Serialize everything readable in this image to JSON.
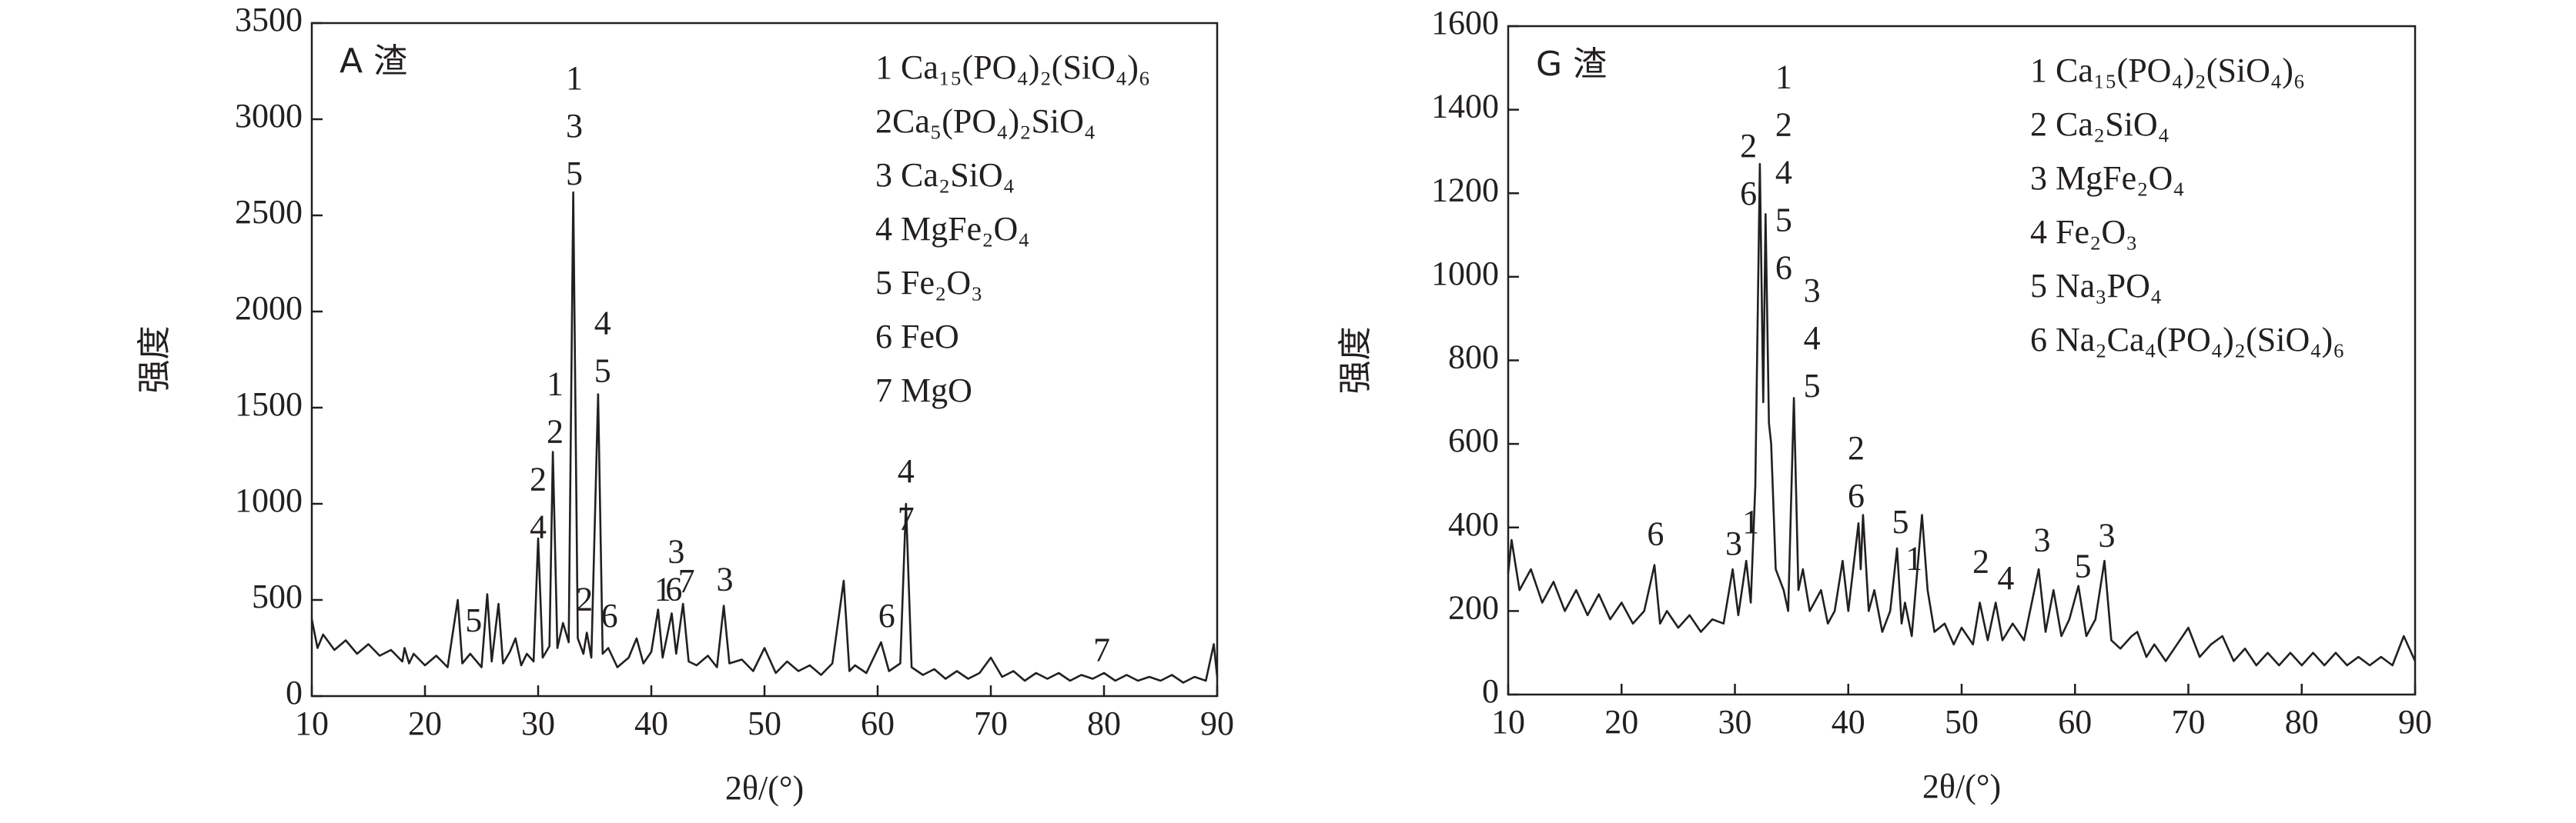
{
  "chart_data": [
    {
      "type": "line",
      "title": "A 渣",
      "xlabel": "2θ/(°)",
      "ylabel": "强度",
      "color": "#231f20",
      "xlim": [
        10,
        90
      ],
      "xticks": [
        10,
        20,
        30,
        40,
        50,
        60,
        70,
        80,
        90
      ],
      "ylim": [
        0,
        3500
      ],
      "yticks": [
        0,
        500,
        1000,
        1500,
        2000,
        2500,
        3000,
        3500
      ],
      "legend": [
        "1 Ca₁₅(PO₄)₂(SiO₄)₆",
        "2Ca₅(PO₄)₂SiO₄",
        "3 Ca₂SiO₄",
        "4 MgFe₂O₄",
        "5 Fe₂O₃",
        "6 FeO",
        "7 MgO"
      ],
      "x": [
        10,
        10.5,
        11,
        12,
        13,
        14,
        15,
        16,
        17,
        18,
        18.2,
        18.6,
        19,
        20,
        21,
        22,
        22.9,
        23.3,
        24,
        25,
        25.5,
        25.9,
        26.5,
        26.9,
        27.5,
        28,
        28.5,
        29,
        29.6,
        30,
        30.4,
        31,
        31.3,
        31.7,
        32.2,
        32.7,
        33.1,
        33.5,
        34,
        34.3,
        34.7,
        35.3,
        35.7,
        36.2,
        37,
        38,
        38.7,
        39.3,
        40,
        40.6,
        41,
        41.8,
        42.2,
        42.8,
        43.3,
        44,
        45,
        45.8,
        46.4,
        46.9,
        48,
        49,
        50,
        51,
        52,
        53,
        54,
        55,
        56,
        57,
        57.5,
        58,
        59,
        60.3,
        61,
        62,
        62.5,
        63,
        64,
        65,
        66,
        67,
        68,
        69,
        70,
        71,
        72,
        73,
        74,
        75,
        76,
        77,
        78,
        79,
        80,
        81,
        82,
        83,
        84,
        85,
        86,
        87,
        88,
        89,
        89.7,
        90
      ],
      "values": [
        400,
        250,
        320,
        240,
        290,
        220,
        270,
        210,
        240,
        180,
        250,
        170,
        220,
        160,
        210,
        150,
        500,
        170,
        220,
        150,
        530,
        180,
        480,
        170,
        230,
        300,
        160,
        220,
        180,
        820,
        200,
        260,
        1270,
        250,
        380,
        280,
        2620,
        300,
        220,
        330,
        200,
        1570,
        220,
        250,
        150,
        200,
        300,
        170,
        230,
        450,
        200,
        430,
        220,
        480,
        180,
        160,
        210,
        150,
        470,
        170,
        190,
        130,
        250,
        120,
        180,
        130,
        160,
        110,
        170,
        600,
        130,
        160,
        120,
        280,
        130,
        170,
        1000,
        150,
        110,
        140,
        90,
        130,
        90,
        120,
        200,
        100,
        130,
        80,
        120,
        90,
        120,
        80,
        110,
        90,
        120,
        80,
        110,
        80,
        100,
        80,
        110,
        70,
        100,
        80,
        270,
        100
      ],
      "annotations": [
        {
          "x": 33.2,
          "y": 2700,
          "lines": [
            "1",
            "3",
            "5"
          ]
        },
        {
          "x": 35.7,
          "y": 1674,
          "lines": [
            "4",
            "5"
          ]
        },
        {
          "x": 31.5,
          "y": 1358,
          "lines": [
            "1",
            "2"
          ]
        },
        {
          "x": 30.0,
          "y": 862,
          "lines": [
            "2",
            "4"
          ]
        },
        {
          "x": 24.3,
          "y": 376,
          "lines": [
            "5"
          ]
        },
        {
          "x": 34.1,
          "y": 487,
          "lines": [
            "2"
          ]
        },
        {
          "x": 36.3,
          "y": 401,
          "lines": [
            "6"
          ]
        },
        {
          "x": 41.0,
          "y": 538,
          "lines": [
            "1"
          ]
        },
        {
          "x": 42.0,
          "y": 538,
          "lines": [
            "6"
          ]
        },
        {
          "x": 42.2,
          "y": 734,
          "lines": [
            "3"
          ]
        },
        {
          "x": 43.1,
          "y": 580,
          "lines": [
            "7"
          ]
        },
        {
          "x": 46.5,
          "y": 590,
          "lines": [
            "3"
          ]
        },
        {
          "x": 60.8,
          "y": 401,
          "lines": [
            "6"
          ]
        },
        {
          "x": 62.5,
          "y": 905,
          "lines": [
            "4",
            "7"
          ]
        },
        {
          "x": 79.8,
          "y": 222,
          "lines": [
            "7"
          ]
        }
      ]
    },
    {
      "type": "line",
      "title": "G 渣",
      "xlabel": "2θ/(°)",
      "ylabel": "强度",
      "color": "#231f20",
      "xlim": [
        10,
        90
      ],
      "xticks": [
        10,
        20,
        30,
        40,
        50,
        60,
        70,
        80,
        90
      ],
      "ylim": [
        0,
        1600
      ],
      "yticks": [
        0,
        200,
        400,
        600,
        800,
        1000,
        1200,
        1400,
        1600
      ],
      "legend": [
        "1 Ca₁₅(PO₄)₂(SiO₄)₆",
        "2 Ca₂SiO₄",
        "3 MgFe₂O₄",
        "4 Fe₂O₃",
        "5 Na₃PO₄",
        "6 Na₂Ca₄(PO₄)₂(SiO₄)₆"
      ],
      "x": [
        10,
        10.3,
        11,
        12,
        13,
        14,
        15,
        16,
        17,
        18,
        19,
        20,
        21,
        22,
        22.9,
        23.4,
        24,
        25,
        26,
        27,
        28,
        29,
        29.8,
        30.3,
        31,
        31.4,
        31.8,
        32.2,
        32.5,
        32.7,
        33,
        33.2,
        33.6,
        34.3,
        34.7,
        35.2,
        35.6,
        36,
        36.6,
        37.6,
        38.2,
        38.8,
        39.5,
        40,
        40.9,
        41.1,
        41.3,
        41.8,
        42.3,
        43,
        43.7,
        44.3,
        44.7,
        45,
        45.6,
        46.5,
        47,
        47.6,
        48.5,
        49.3,
        50,
        51,
        51.6,
        52.3,
        53,
        53.6,
        54.5,
        55.5,
        56.8,
        57.4,
        58.1,
        58.8,
        59.5,
        60.3,
        61,
        61.8,
        62.6,
        63.2,
        64,
        65,
        65.5,
        66.3,
        67,
        68,
        69,
        70,
        71,
        72,
        73,
        74,
        75,
        76,
        77,
        78,
        79,
        80,
        81,
        82,
        83,
        84,
        85,
        86,
        87,
        88,
        89,
        90
      ],
      "values": [
        290,
        370,
        250,
        300,
        220,
        270,
        200,
        250,
        190,
        240,
        180,
        220,
        170,
        200,
        310,
        170,
        200,
        160,
        190,
        150,
        180,
        170,
        300,
        190,
        320,
        220,
        500,
        1270,
        700,
        1150,
        650,
        600,
        300,
        250,
        200,
        710,
        250,
        300,
        200,
        250,
        170,
        200,
        320,
        200,
        410,
        300,
        430,
        200,
        250,
        150,
        200,
        350,
        170,
        220,
        140,
        430,
        250,
        150,
        170,
        120,
        160,
        120,
        220,
        130,
        220,
        130,
        170,
        130,
        300,
        150,
        250,
        140,
        180,
        260,
        140,
        180,
        320,
        130,
        110,
        140,
        150,
        90,
        120,
        80,
        120,
        160,
        90,
        120,
        140,
        80,
        110,
        70,
        100,
        70,
        100,
        70,
        100,
        70,
        100,
        70,
        90,
        70,
        90,
        70,
        140,
        80
      ],
      "annotations": [
        {
          "x": 23.0,
          "y": 377,
          "lines": [
            "6"
          ]
        },
        {
          "x": 29.9,
          "y": 354,
          "lines": [
            "3"
          ]
        },
        {
          "x": 31.4,
          "y": 405,
          "lines": [
            "1"
          ]
        },
        {
          "x": 31.2,
          "y": 1191,
          "lines": [
            "2",
            "6"
          ]
        },
        {
          "x": 34.3,
          "y": 1014,
          "lines": [
            "1",
            "2",
            "4",
            "5",
            "6"
          ]
        },
        {
          "x": 36.8,
          "y": 731,
          "lines": [
            "3",
            "4",
            "5"
          ]
        },
        {
          "x": 40.7,
          "y": 468,
          "lines": [
            "2",
            "6"
          ]
        },
        {
          "x": 44.6,
          "y": 405,
          "lines": [
            "5"
          ]
        },
        {
          "x": 45.8,
          "y": 318,
          "lines": [
            "1"
          ]
        },
        {
          "x": 51.7,
          "y": 310,
          "lines": [
            "2"
          ]
        },
        {
          "x": 53.9,
          "y": 271,
          "lines": [
            "4"
          ]
        },
        {
          "x": 57.1,
          "y": 362,
          "lines": [
            "3"
          ]
        },
        {
          "x": 60.7,
          "y": 299,
          "lines": [
            "5"
          ]
        },
        {
          "x": 62.8,
          "y": 373,
          "lines": [
            "3"
          ]
        }
      ]
    }
  ]
}
